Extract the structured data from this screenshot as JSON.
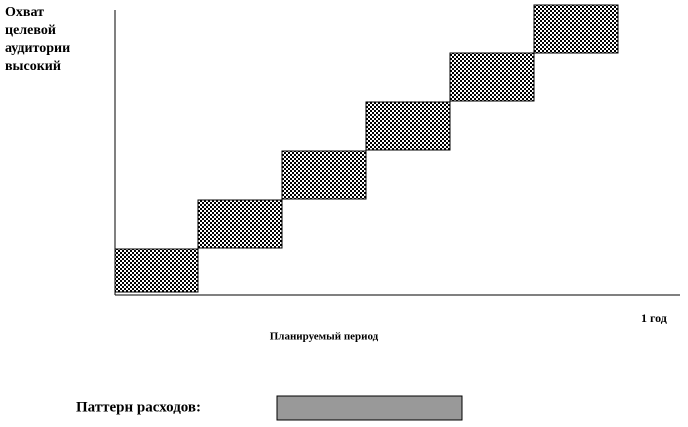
{
  "y_axis_label": [
    "Охват",
    "целевой",
    "аудитории",
    "высокий"
  ],
  "x_axis_end_label": "1 год",
  "x_axis_label": "Планируемый период",
  "pattern_label": "Паттерн расходов:"
}
